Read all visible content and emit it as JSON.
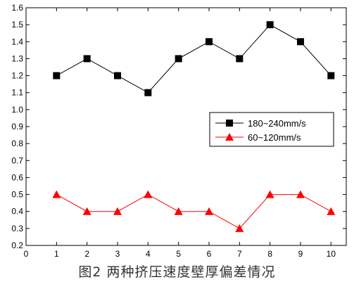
{
  "caption": "图2  两种挤压速度壁厚偏差情况",
  "chart_data": {
    "type": "line",
    "title": "",
    "xlabel": "",
    "ylabel": "",
    "xlim": [
      0,
      10.5
    ],
    "ylim": [
      0.2,
      1.6
    ],
    "x_ticks": [
      0,
      1,
      2,
      3,
      4,
      5,
      6,
      7,
      8,
      9,
      10
    ],
    "y_ticks": [
      0.2,
      0.3,
      0.4,
      0.5,
      0.6,
      0.7,
      0.8,
      0.9,
      1.0,
      1.1,
      1.2,
      1.3,
      1.4,
      1.5,
      1.6
    ],
    "x": [
      1,
      2,
      3,
      4,
      5,
      6,
      7,
      8,
      9,
      10
    ],
    "legend_position": "right",
    "series": [
      {
        "name": "180~240mm/s",
        "color": "#000000",
        "marker": "square",
        "values": [
          1.2,
          1.3,
          1.2,
          1.1,
          1.3,
          1.4,
          1.3,
          1.5,
          1.4,
          1.2
        ]
      },
      {
        "name": "60~120mm/s",
        "color": "#ff0000",
        "marker": "triangle",
        "values": [
          0.5,
          0.4,
          0.4,
          0.5,
          0.4,
          0.4,
          0.3,
          0.5,
          0.5,
          0.4
        ]
      }
    ]
  }
}
